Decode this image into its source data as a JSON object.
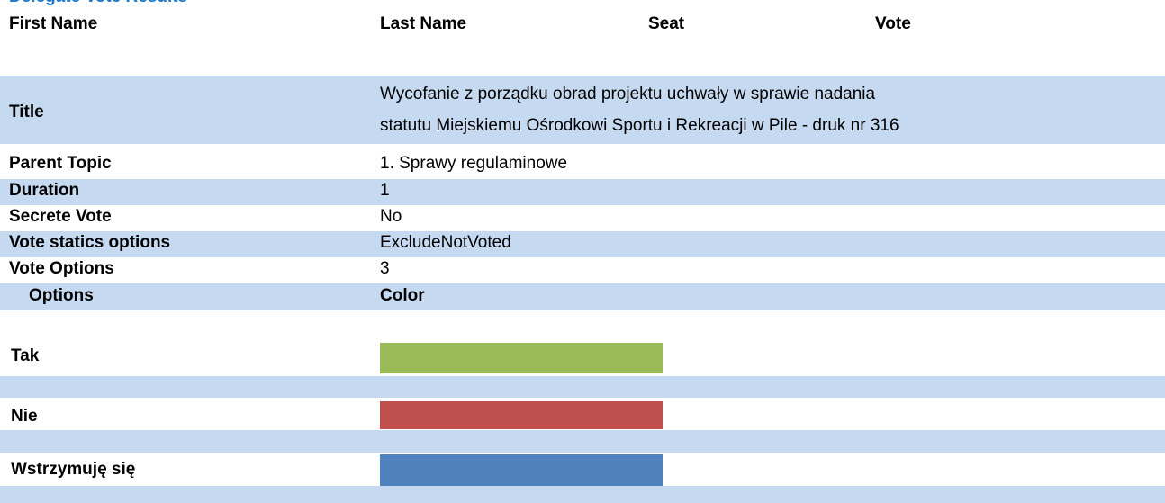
{
  "header": {
    "title": "Delegate Vote Results",
    "columns": [
      "First Name",
      "Last Name",
      "Seat",
      "Vote"
    ]
  },
  "details": [
    {
      "label": "Title",
      "value": [
        "Wycofanie z porządku obrad projektu uchwały w sprawie nadania",
        "statutu Miejskiemu Ośrodkowi Sportu i Rekreacji w Pile - druk nr 316"
      ]
    },
    {
      "label": "Parent Topic",
      "value": "1. Sprawy regulaminowe"
    },
    {
      "label": "Duration",
      "value": "1"
    },
    {
      "label": "Secrete Vote",
      "value": "No"
    },
    {
      "label": "Vote statics options",
      "value": "ExcludeNotVoted"
    },
    {
      "label": "Vote Options",
      "value": "3"
    }
  ],
  "options_table": {
    "columns": [
      "Options",
      "Color"
    ],
    "rows": [
      {
        "name": "Tak",
        "color": "#9bbb59"
      },
      {
        "name": "Nie",
        "color": "#c0504d"
      },
      {
        "name": "Wstrzymuję się",
        "color": "#4f81bd"
      }
    ]
  }
}
